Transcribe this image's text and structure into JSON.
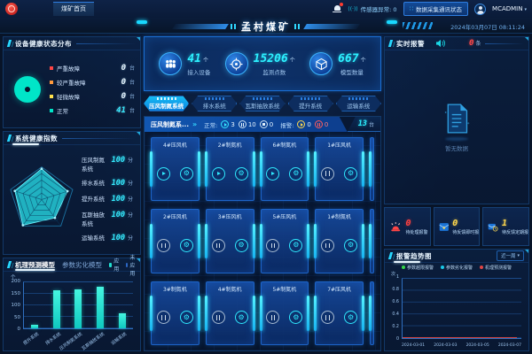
{
  "header": {
    "tab_home": "煤矿首页",
    "title": "孟村煤矿",
    "sensor_status": "传感器异常: 0",
    "comm_status": "数据采集通讯状态",
    "username": "MCADMIN",
    "datetime": "2024年03月07日 08:11:24"
  },
  "left": {
    "device_health": {
      "title": "设备健康状态分布",
      "ring_color": "#00e5c8",
      "legend": [
        {
          "label": "严重故障",
          "value": "0",
          "unit": "台",
          "color": "#ff4545"
        },
        {
          "label": "较严重故障",
          "value": "0",
          "unit": "台",
          "color": "#ff9a3d"
        },
        {
          "label": "轻微故障",
          "value": "0",
          "unit": "台",
          "color": "#ffe14d"
        },
        {
          "label": "正常",
          "value": "41",
          "unit": "台",
          "color": "#00e5c8"
        }
      ]
    },
    "system_health": {
      "title": "系统健康指数",
      "items": [
        {
          "label": "压风制氮系统",
          "value": "100",
          "unit": "分"
        },
        {
          "label": "排水系统",
          "value": "100",
          "unit": "分"
        },
        {
          "label": "提升系统",
          "value": "100",
          "unit": "分"
        },
        {
          "label": "瓦斯抽放系统",
          "value": "100",
          "unit": "分"
        },
        {
          "label": "运输系统",
          "value": "100",
          "unit": "分"
        }
      ]
    },
    "model_panel": {
      "tab_active": "机理预测模型",
      "tab_inactive": "参数劣化模型",
      "legend": [
        {
          "label": "应用",
          "color": "#22e0d0"
        },
        {
          "label": "未应用",
          "color": "#2b66c4"
        }
      ],
      "chart": {
        "type": "bar",
        "unit": "个",
        "ymax": 200,
        "yticks": [
          "200",
          "150",
          "100",
          "50",
          "0"
        ],
        "categories": [
          "提升系统",
          "排水系统",
          "压风制氮系统",
          "瓦斯抽放系统",
          "运输系统"
        ],
        "values": [
          15,
          165,
          170,
          180,
          65
        ]
      }
    }
  },
  "center": {
    "stats": [
      {
        "value": "41",
        "unit": "个",
        "label": "接入设备"
      },
      {
        "value": "15206",
        "unit": "个",
        "label": "监测点数"
      },
      {
        "value": "667",
        "unit": "个",
        "label": "模型数量"
      }
    ],
    "system_tabs": [
      {
        "label": "压风制氮系统",
        "active": true
      },
      {
        "label": "排水系统",
        "active": false
      },
      {
        "label": "瓦斯抽放系统",
        "active": false
      },
      {
        "label": "提升系统",
        "active": false
      },
      {
        "label": "运输系统",
        "active": false
      }
    ],
    "fan_panel": {
      "title": "压风制氮系...",
      "expand": "»",
      "normal_label": "正常:",
      "normal_counts": [
        {
          "state": "run",
          "value": "3"
        },
        {
          "state": "standby",
          "value": "10"
        },
        {
          "state": "stop",
          "value": "0"
        }
      ],
      "alarm_label": "报警:",
      "alarm_counts": [
        {
          "state": "warn",
          "value": "0"
        },
        {
          "state": "fault",
          "value": "0"
        }
      ],
      "total_value": "13",
      "total_unit": "台",
      "rows": [
        [
          {
            "name": "4#压风机",
            "state": "run"
          },
          {
            "name": "2#制氮机",
            "state": "run"
          },
          {
            "name": "6#制氮机",
            "state": "run"
          },
          {
            "name": "1#压风机",
            "state": "standby"
          }
        ],
        [
          {
            "name": "2#压风机",
            "state": "standby"
          },
          {
            "name": "3#压风机",
            "state": "standby"
          },
          {
            "name": "5#压风机",
            "state": "standby"
          },
          {
            "name": "1#制氮机",
            "state": "standby"
          }
        ],
        [
          {
            "name": "3#制氮机",
            "state": "standby"
          },
          {
            "name": "4#制氮机",
            "state": "standby"
          },
          {
            "name": "5#制氮机",
            "state": "standby"
          },
          {
            "name": "7#压风机",
            "state": "standby"
          }
        ]
      ]
    }
  },
  "right": {
    "realtime_alarm": {
      "title": "实时报警",
      "count": "0",
      "unit": "条",
      "empty_text": "暂无数据"
    },
    "pending": [
      {
        "label": "待处理报警",
        "value": "0"
      },
      {
        "label": "待反馈即时报告",
        "value": "0"
      },
      {
        "label": "待反馈定期报告",
        "value": "1"
      }
    ],
    "trend_panel": {
      "title": "报警趋势图",
      "range": "近一周",
      "legend": [
        {
          "label": "参数越限报警",
          "color": "#35d54a"
        },
        {
          "label": "参数劣化报警",
          "color": "#19c8e6"
        },
        {
          "label": "机理预测报警",
          "color": "#e04545"
        }
      ],
      "chart": {
        "type": "line",
        "ylabel": "次",
        "yticks": [
          "1",
          "0.8",
          "0.6",
          "0.4",
          "0.2",
          "0"
        ],
        "xticks": [
          "2024-03-01",
          "2024-03-03",
          "2024-03-05",
          "2024-03-07"
        ],
        "series": [
          {
            "name": "参数越限报警",
            "values": [
              0,
              0,
              0,
              0
            ]
          },
          {
            "name": "参数劣化报警",
            "values": [
              0,
              0,
              0,
              0
            ]
          },
          {
            "name": "机理预测报警",
            "values": [
              0,
              0,
              0,
              0
            ]
          }
        ]
      }
    }
  }
}
